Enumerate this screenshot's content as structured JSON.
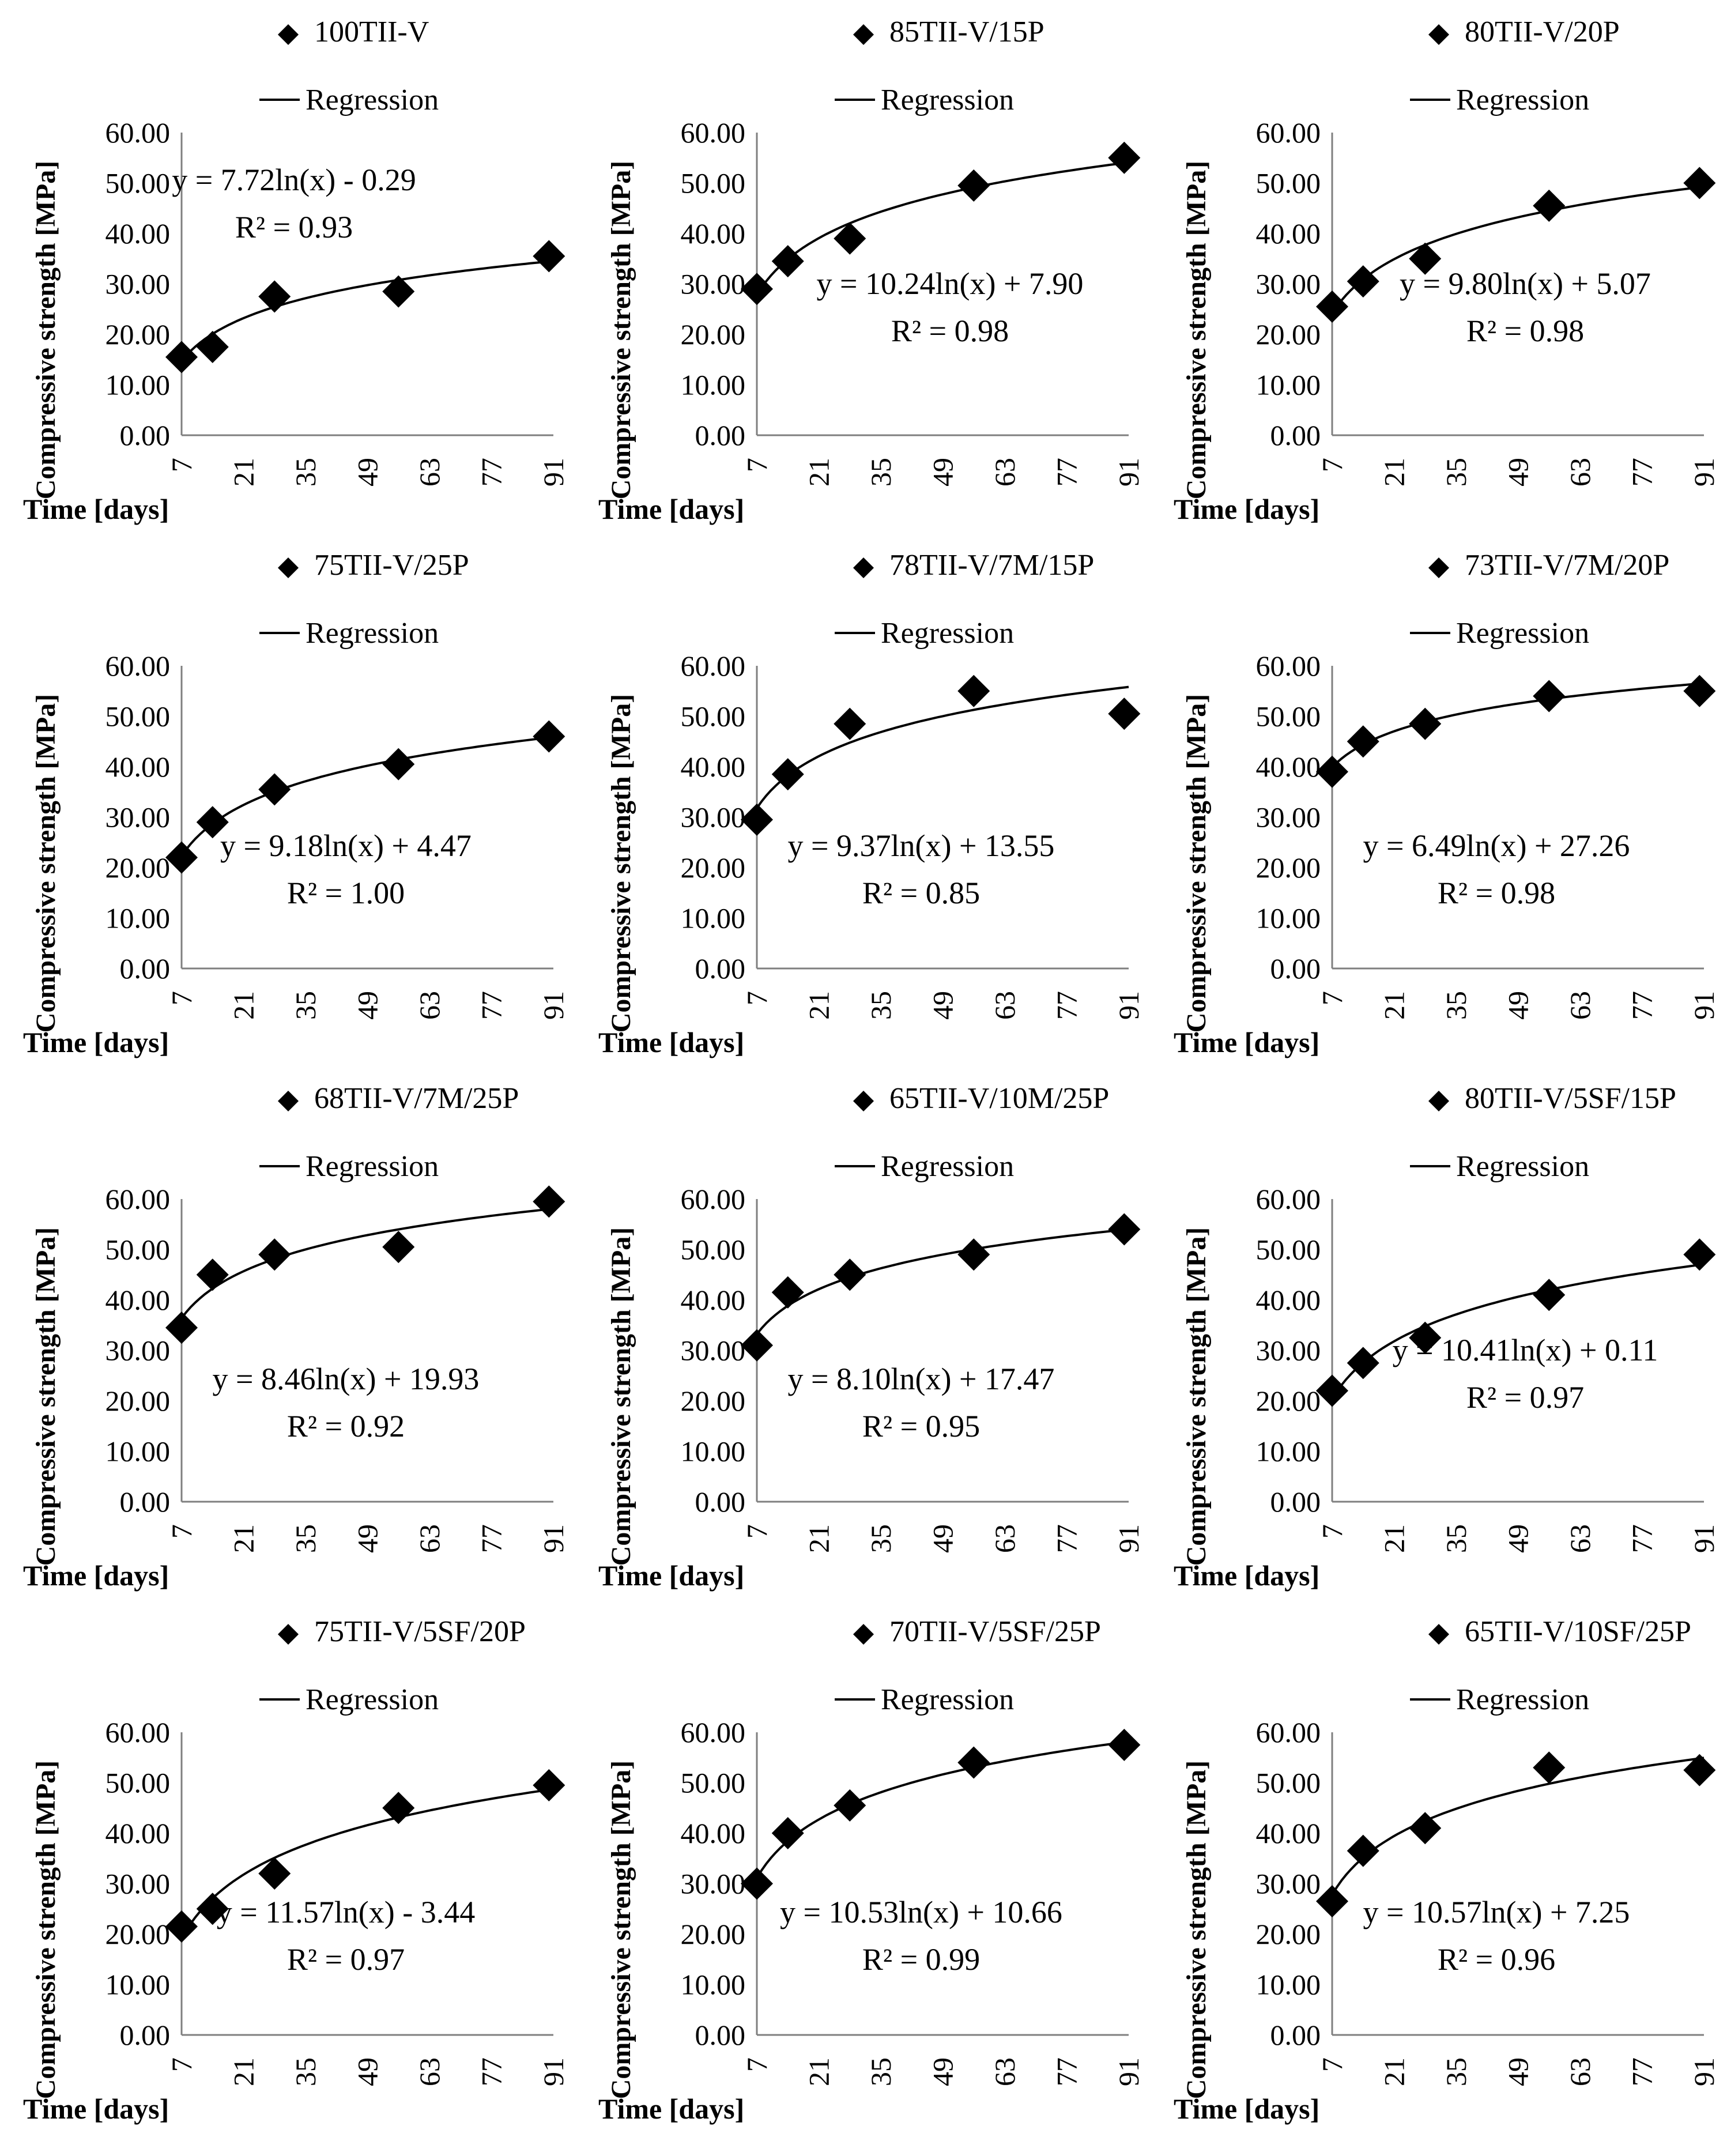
{
  "common": {
    "xlabel": "Time [days]",
    "ylabel": "Compressive strength [MPa]",
    "regression_label": "Regression",
    "x_ticks": [
      "7",
      "21",
      "35",
      "49",
      "63",
      "77",
      "91"
    ],
    "y_ticks": [
      "0.00",
      "10.00",
      "20.00",
      "30.00",
      "40.00",
      "50.00",
      "60.00"
    ],
    "xlim": [
      7,
      91
    ],
    "ylim": [
      0,
      60
    ],
    "marker_color": "#000000",
    "line_color": "#000000"
  },
  "chart_data": [
    {
      "type": "scatter",
      "title": "100TII-V",
      "legend": [
        "100TII-V",
        "Regression"
      ],
      "x": [
        7,
        14,
        28,
        56,
        90
      ],
      "y": [
        15.5,
        17.5,
        27.5,
        28.5,
        35.5
      ],
      "regression": {
        "a": 7.72,
        "b": -0.29
      },
      "equation": "y = 7.72ln(x) - 0.29",
      "r2": "R² = 0.93",
      "eq_place": "top-left"
    },
    {
      "type": "scatter",
      "title": "85TII-V/15P",
      "legend": [
        "85TII-V/15P",
        "Regression"
      ],
      "x": [
        7,
        14,
        28,
        56,
        90
      ],
      "y": [
        29.0,
        34.5,
        39.0,
        49.5,
        55.0
      ],
      "regression": {
        "a": 10.24,
        "b": 7.9
      },
      "equation": "y = 10.24ln(x) + 7.90",
      "r2": "R² = 0.98",
      "eq_place": "middle"
    },
    {
      "type": "scatter",
      "title": "80TII-V/20P",
      "legend": [
        "80TII-V/20P",
        "Regression"
      ],
      "x": [
        7,
        14,
        28,
        56,
        90
      ],
      "y": [
        25.5,
        30.5,
        35.0,
        45.5,
        50.0
      ],
      "regression": {
        "a": 9.8,
        "b": 5.07
      },
      "equation": "y = 9.80ln(x) + 5.07",
      "r2": "R² = 0.98",
      "eq_place": "middle"
    },
    {
      "type": "scatter",
      "title": "75TII-V/25P",
      "legend": [
        "75TII-V/25P",
        "Regression"
      ],
      "x": [
        7,
        14,
        28,
        56,
        90
      ],
      "y": [
        22.0,
        29.0,
        35.5,
        40.5,
        46.0
      ],
      "regression": {
        "a": 9.18,
        "b": 4.47
      },
      "equation": "y = 9.18ln(x) + 4.47",
      "r2": "R² = 1.00",
      "eq_place": "lower"
    },
    {
      "type": "scatter",
      "title": "78TII-V/7M/15P",
      "legend": [
        "78TII-V/7M/15P",
        "Regression"
      ],
      "x": [
        7,
        14,
        28,
        56,
        90
      ],
      "y": [
        29.5,
        38.5,
        48.5,
        55.0,
        50.5
      ],
      "regression": {
        "a": 9.37,
        "b": 13.55
      },
      "equation": "y = 9.37ln(x) + 13.55",
      "r2": "R² = 0.85",
      "eq_place": "lower"
    },
    {
      "type": "scatter",
      "title": "73TII-V/7M/20P",
      "legend": [
        "73TII-V/7M/20P",
        "Regression"
      ],
      "x": [
        7,
        14,
        28,
        56,
        90
      ],
      "y": [
        39.0,
        45.0,
        48.5,
        54.0,
        55.0
      ],
      "regression": {
        "a": 6.49,
        "b": 27.26
      },
      "equation": "y = 6.49ln(x) + 27.26",
      "r2": "R² = 0.98",
      "eq_place": "lower"
    },
    {
      "type": "scatter",
      "title": "68TII-V/7M/25P",
      "legend": [
        "68TII-V/7M/25P",
        "Regression"
      ],
      "x": [
        7,
        14,
        28,
        56,
        90
      ],
      "y": [
        34.5,
        45.0,
        49.0,
        50.5,
        59.5
      ],
      "regression": {
        "a": 8.46,
        "b": 19.93
      },
      "equation": "y = 8.46ln(x) + 19.93",
      "r2": "R² = 0.92",
      "eq_place": "lower"
    },
    {
      "type": "scatter",
      "title": "65TII-V/10M/25P",
      "legend": [
        "65TII-V/10M/25P",
        "Regression"
      ],
      "x": [
        7,
        14,
        28,
        56,
        90
      ],
      "y": [
        31.0,
        41.5,
        45.0,
        49.0,
        54.0
      ],
      "regression": {
        "a": 8.1,
        "b": 17.47
      },
      "equation": "y = 8.10ln(x) + 17.47",
      "r2": "R² = 0.95",
      "eq_place": "lower"
    },
    {
      "type": "scatter",
      "title": "80TII-V/5SF/15P",
      "legend": [
        "80TII-V/5SF/15P",
        "Regression"
      ],
      "x": [
        7,
        14,
        28,
        56,
        90
      ],
      "y": [
        22.0,
        27.5,
        32.5,
        41.0,
        49.0
      ],
      "regression": {
        "a": 10.41,
        "b": 0.11
      },
      "equation": "y = 10.41ln(x) + 0.11",
      "r2": "R² = 0.97",
      "eq_place": "middle"
    },
    {
      "type": "scatter",
      "title": "75TII-V/5SF/20P",
      "legend": [
        "75TII-V/5SF/20P",
        "Regression"
      ],
      "x": [
        7,
        14,
        28,
        56,
        90
      ],
      "y": [
        21.5,
        25.0,
        32.0,
        45.0,
        49.5
      ],
      "regression": {
        "a": 11.57,
        "b": -3.44
      },
      "equation": "y = 11.57ln(x) - 3.44",
      "r2": "R² = 0.97",
      "eq_place": "lower"
    },
    {
      "type": "scatter",
      "title": "70TII-V/5SF/25P",
      "legend": [
        "70TII-V/5SF/25P",
        "Regression"
      ],
      "x": [
        7,
        14,
        28,
        56,
        90
      ],
      "y": [
        30.0,
        40.0,
        45.5,
        54.0,
        57.5
      ],
      "regression": {
        "a": 10.53,
        "b": 10.66
      },
      "equation": "y = 10.53ln(x) + 10.66",
      "r2": "R² = 0.99",
      "eq_place": "lower"
    },
    {
      "type": "scatter",
      "title": "65TII-V/10SF/25P",
      "legend": [
        "65TII-V/10SF/25P",
        "Regression"
      ],
      "x": [
        7,
        14,
        28,
        56,
        90
      ],
      "y": [
        26.5,
        36.5,
        41.0,
        53.0,
        52.5
      ],
      "regression": {
        "a": 10.57,
        "b": 7.25
      },
      "equation": "y = 10.57ln(x) + 7.25",
      "r2": "R² = 0.96",
      "eq_place": "lower"
    }
  ]
}
